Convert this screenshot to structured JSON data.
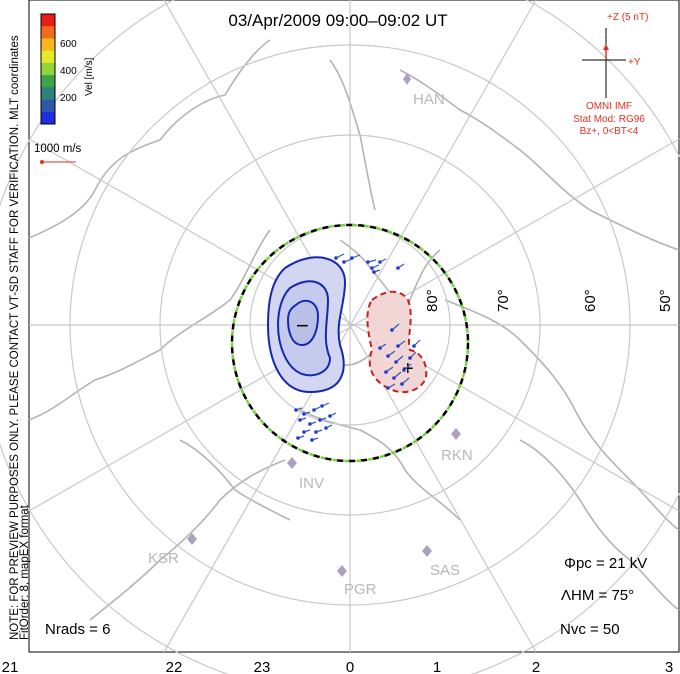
{
  "header": {
    "title": "03/Apr/2009 09:00–09:02 UT"
  },
  "colorbar": {
    "ticks": [
      "600",
      "400",
      "200"
    ],
    "label": "Vel [m/s]",
    "colors": [
      "#e81e14",
      "#f36a1c",
      "#f7b51e",
      "#e6e82a",
      "#8fd23a",
      "#3fa34d",
      "#2f7f7a",
      "#2d5aa8",
      "#1f2fe0"
    ]
  },
  "coord_label": "MLT coordinates",
  "reference_vector": {
    "label": "1000 m/s"
  },
  "preview_note": "NOTE: FOR PREVIEW PURPOSES ONLY. PLEASE CONTACT VT-SD STAFF FOR VERIFICATION.",
  "fit_note": "FitOrder: 8, mapEX format",
  "imf": {
    "scale_label": "+Z (5 nT)",
    "y_label": "+Y",
    "source": "OMNI IMF",
    "model": "Stat Mod: RG96",
    "condition": "Bz+, 0<BT<4"
  },
  "latitude_labels": [
    "80°",
    "70°",
    "60°",
    "50°"
  ],
  "mlt_labels": [
    "21",
    "22",
    "23",
    "0",
    "1",
    "2",
    "3"
  ],
  "stations": [
    "HAN",
    "RKN",
    "INV",
    "KSR",
    "SAS",
    "PGR"
  ],
  "stats": {
    "phi_pc": "Φpc = 21 kV",
    "lambda_hm": "ΛHM = 75°",
    "n_vc": "Nvc = 50",
    "n_rads": "Nrads = 6"
  },
  "symbols": {
    "negative_cell": "−",
    "positive_cell": "+"
  },
  "colors": {
    "neg_contour": "#1428b4",
    "neg_fill": "#d2d6f0",
    "pos_contour": "#c81e1e",
    "pos_fill": "#f2d6d6",
    "hmb_green": "#7ad23c",
    "grid": "#c8c8c8",
    "coast": "#b4b4b4",
    "imf": "#e0321e"
  }
}
